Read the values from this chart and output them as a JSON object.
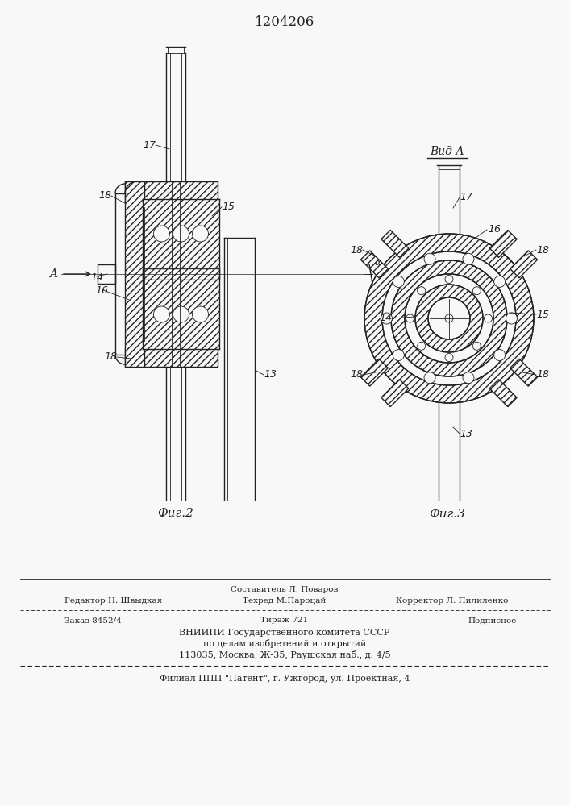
{
  "patent_number": "1204206",
  "bg_color": "#f8f8f8",
  "fig_width": 7.07,
  "fig_height": 10.0,
  "footer": {
    "editor": "Редактор Н. Швыдкая",
    "composer": "Составитель Л. Поваров",
    "techred": "Техред М.Пароцай",
    "corrector": "Корректор Л. Пилиленко",
    "order": "Заказ 8452/4",
    "edition": "Тираж 721",
    "signed": "Подписное",
    "org1": "ВНИИПИ Государственного комитета СССР",
    "org2": "по делам изобретений и открытий",
    "org3": "113035, Москва, Ж-35, Раушская наб., д. 4/5",
    "affiliate": "Филиал ППП \"Патент\", г. Ужгород, ул. Проектная, 4"
  },
  "fig2_caption": "Фиг.2",
  "fig3_caption": "Фиг.3",
  "view_label": "Вид А"
}
